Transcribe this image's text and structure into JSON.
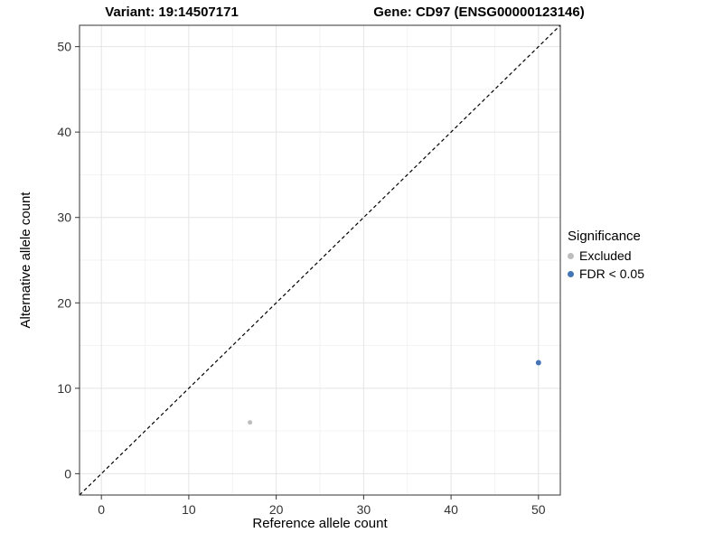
{
  "chart_data": {
    "type": "scatter",
    "title_left": "Variant: 19:14507171",
    "title_right": "Gene: CD97 (ENSG00000123146)",
    "xlabel": "Reference allele count",
    "ylabel": "Alternative allele count",
    "xlim": [
      -2.5,
      52.5
    ],
    "ylim": [
      -2.5,
      52.5
    ],
    "xticks": [
      0,
      10,
      20,
      30,
      40,
      50
    ],
    "yticks": [
      0,
      10,
      20,
      30,
      40,
      50
    ],
    "grid": true,
    "identity_line": {
      "style": "dashed",
      "color": "#000000",
      "from": [
        -2.5,
        -2.5
      ],
      "to": [
        52.5,
        52.5
      ]
    },
    "series": [
      {
        "name": "Excluded",
        "color": "#bdbdbd",
        "size": 2.5,
        "points": [
          {
            "x": 17,
            "y": 6
          }
        ]
      },
      {
        "name": "FDR < 0.05",
        "color": "#4575b4",
        "size": 3,
        "points": [
          {
            "x": 50,
            "y": 13
          }
        ]
      }
    ],
    "legend": {
      "title": "Significance",
      "position": "right",
      "entries": [
        {
          "label": "Excluded",
          "color": "#bdbdbd"
        },
        {
          "label": "FDR < 0.05",
          "color": "#4575b4"
        }
      ]
    }
  }
}
